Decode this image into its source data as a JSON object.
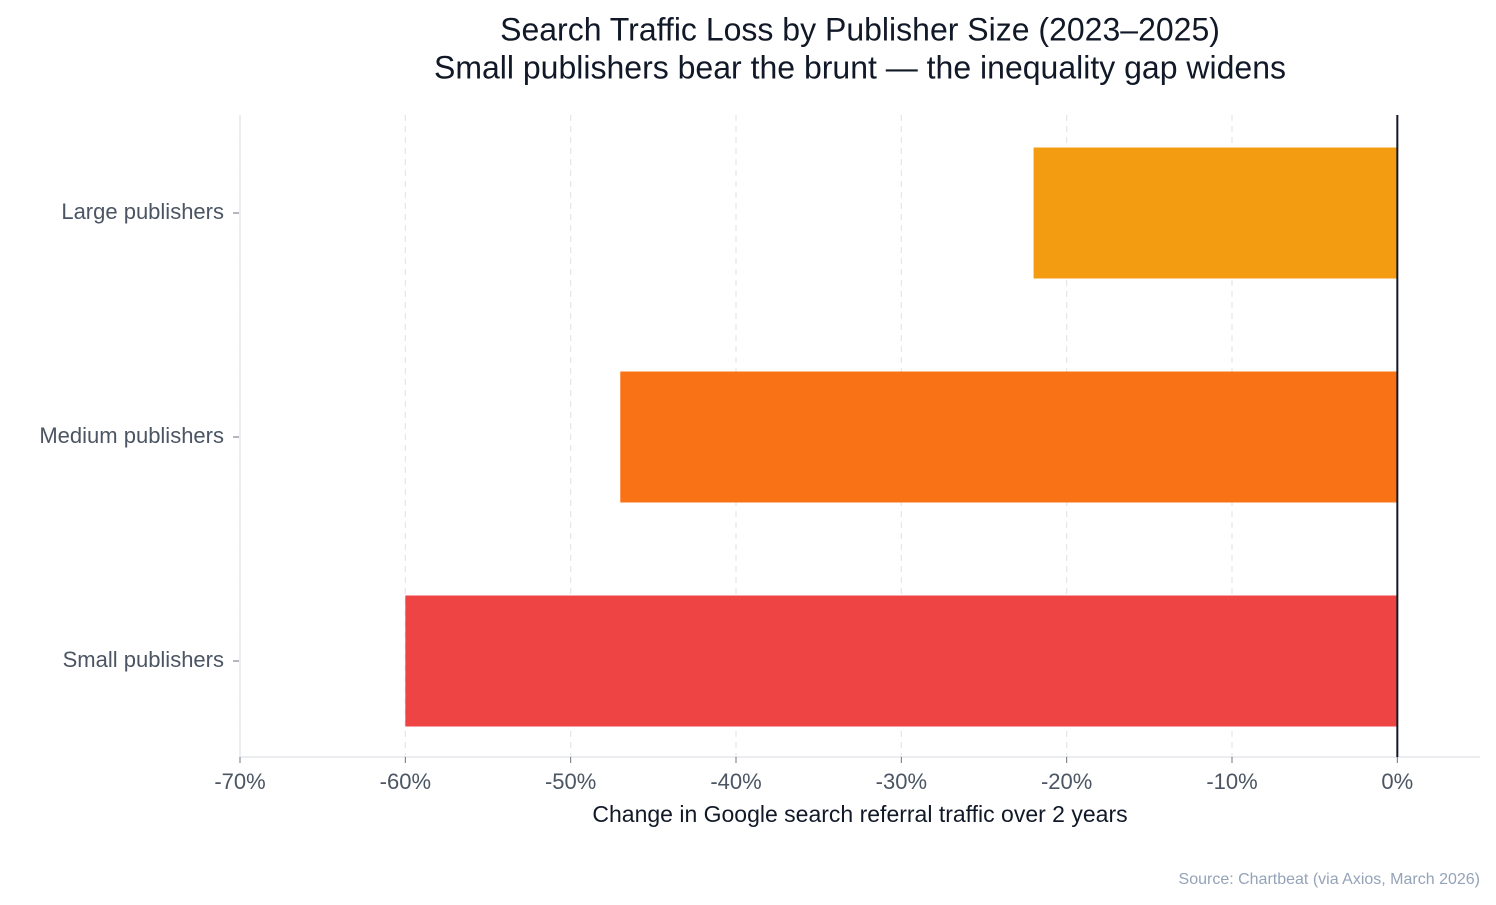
{
  "chart_data": {
    "type": "barh",
    "title": "Search Traffic Loss by Publisher Size (2023–2025)",
    "subtitle": "Small publishers bear the brunt — the inequality gap widens",
    "categories": [
      "Large publishers",
      "Medium publishers",
      "Small publishers"
    ],
    "values": [
      -22,
      -47,
      -60
    ],
    "colors": [
      "#f39c12",
      "#f97316",
      "#ef4444"
    ],
    "xlim": [
      -70,
      5
    ],
    "xticks": [
      {
        "value": -70,
        "label": "-70%"
      },
      {
        "value": -60,
        "label": "-60%"
      },
      {
        "value": -50,
        "label": "-50%"
      },
      {
        "value": -40,
        "label": "-40%"
      },
      {
        "value": -30,
        "label": "-30%"
      },
      {
        "value": -20,
        "label": "-20%"
      },
      {
        "value": -10,
        "label": "-10%"
      },
      {
        "value": 0,
        "label": "0%"
      }
    ],
    "xlabel": "Change in Google search referral traffic over 2 years",
    "source": "Source: Chartbeat (via Axios, March 2026)",
    "grid": true
  }
}
